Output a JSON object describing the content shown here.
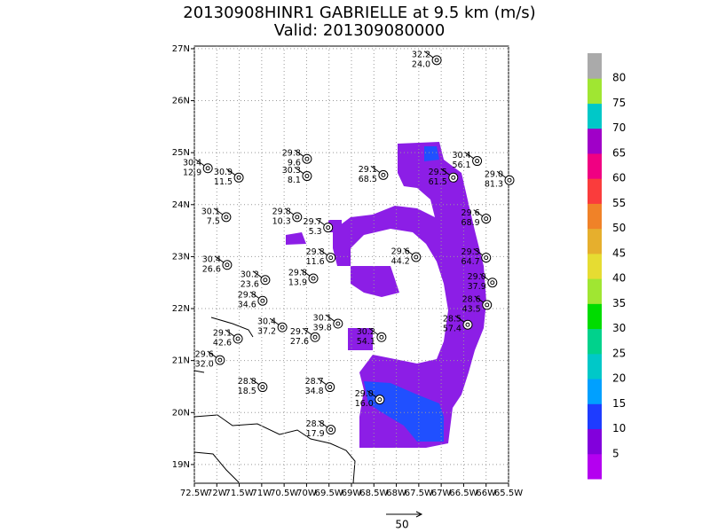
{
  "title": "20130908HINR1 GABRIELLE at 9.5 km (m/s)",
  "subtitle": "Valid: 201309080000",
  "map": {
    "xlim": [
      -72.5,
      -65.5
    ],
    "ylim": [
      18.64,
      27.05
    ],
    "xticks": [
      {
        "value": -72.5,
        "label": "72.5W"
      },
      {
        "value": -72,
        "label": "72W"
      },
      {
        "value": -71.5,
        "label": "71.5W"
      },
      {
        "value": -71,
        "label": "71W"
      },
      {
        "value": -70.5,
        "label": "70.5W"
      },
      {
        "value": -70,
        "label": "70W"
      },
      {
        "value": -69.5,
        "label": "69.5W"
      },
      {
        "value": -69,
        "label": "69W"
      },
      {
        "value": -68.5,
        "label": "68.5W"
      },
      {
        "value": -68,
        "label": "68W"
      },
      {
        "value": -67.5,
        "label": "67.5W"
      },
      {
        "value": -67,
        "label": "67W"
      },
      {
        "value": -66.5,
        "label": "66.5W"
      },
      {
        "value": -66,
        "label": "66W"
      },
      {
        "value": -65.5,
        "label": "65.5W"
      }
    ],
    "yticks": [
      {
        "value": 19,
        "label": "19N"
      },
      {
        "value": 20,
        "label": "20N"
      },
      {
        "value": 21,
        "label": "21N"
      },
      {
        "value": 22,
        "label": "22N"
      },
      {
        "value": 23,
        "label": "23N"
      },
      {
        "value": 24,
        "label": "24N"
      },
      {
        "value": 25,
        "label": "25N"
      },
      {
        "value": 26,
        "label": "26N"
      },
      {
        "value": 27,
        "label": "27N"
      }
    ],
    "grid": true
  },
  "stations": [
    {
      "lon": -67.1,
      "lat": 26.78,
      "top": "32.2",
      "bottom": "24.0"
    },
    {
      "lon": -69.99,
      "lat": 24.88,
      "top": "29.8",
      "bottom": "9.6"
    },
    {
      "lon": -72.2,
      "lat": 24.7,
      "top": "30.4",
      "bottom": "12.9"
    },
    {
      "lon": -71.51,
      "lat": 24.52,
      "top": "30.9",
      "bottom": "11.5"
    },
    {
      "lon": -69.99,
      "lat": 24.55,
      "top": "30.3",
      "bottom": "8.1"
    },
    {
      "lon": -68.29,
      "lat": 24.57,
      "top": "29.1",
      "bottom": "68.5"
    },
    {
      "lon": -66.73,
      "lat": 24.52,
      "top": "29.5",
      "bottom": "61.5"
    },
    {
      "lon": -66.2,
      "lat": 24.84,
      "top": "30.4",
      "bottom": "56.1"
    },
    {
      "lon": -65.48,
      "lat": 24.47,
      "top": "29.0",
      "bottom": "81.3"
    },
    {
      "lon": -71.79,
      "lat": 23.76,
      "top": "30.1",
      "bottom": "7.5"
    },
    {
      "lon": -70.21,
      "lat": 23.76,
      "top": "29.8",
      "bottom": "10.3"
    },
    {
      "lon": -69.52,
      "lat": 23.56,
      "top": "29.7",
      "bottom": "5.3"
    },
    {
      "lon": -67.56,
      "lat": 22.99,
      "top": "29.6",
      "bottom": "44.2"
    },
    {
      "lon": -66.0,
      "lat": 23.73,
      "top": "29.6",
      "bottom": "68.9"
    },
    {
      "lon": -66.0,
      "lat": 22.98,
      "top": "29.3",
      "bottom": "64.7"
    },
    {
      "lon": -71.77,
      "lat": 22.84,
      "top": "30.4",
      "bottom": "26.6"
    },
    {
      "lon": -70.92,
      "lat": 22.55,
      "top": "30.2",
      "bottom": "23.6"
    },
    {
      "lon": -69.85,
      "lat": 22.58,
      "top": "29.8",
      "bottom": "13.9"
    },
    {
      "lon": -70.98,
      "lat": 22.15,
      "top": "29.8",
      "bottom": "34.6"
    },
    {
      "lon": -69.46,
      "lat": 22.98,
      "top": "29.8",
      "bottom": "11.6"
    },
    {
      "lon": -70.54,
      "lat": 21.64,
      "top": "30.4",
      "bottom": "37.2"
    },
    {
      "lon": -71.53,
      "lat": 21.42,
      "top": "29.1",
      "bottom": "42.6"
    },
    {
      "lon": -69.81,
      "lat": 21.45,
      "top": "29.7",
      "bottom": "27.6"
    },
    {
      "lon": -69.3,
      "lat": 21.71,
      "top": "30.1",
      "bottom": "39.8"
    },
    {
      "lon": -68.33,
      "lat": 21.45,
      "top": "30.2",
      "bottom": "54.1"
    },
    {
      "lon": -71.93,
      "lat": 21.01,
      "top": "29.6",
      "bottom": "32.0"
    },
    {
      "lon": -70.98,
      "lat": 20.49,
      "top": "28.8",
      "bottom": "18.5"
    },
    {
      "lon": -69.48,
      "lat": 20.49,
      "top": "28.7",
      "bottom": "34.8"
    },
    {
      "lon": -68.37,
      "lat": 20.25,
      "top": "29.0",
      "bottom": "16.0"
    },
    {
      "lon": -69.46,
      "lat": 19.67,
      "top": "28.8",
      "bottom": "17.9"
    },
    {
      "lon": -66.41,
      "lat": 21.69,
      "top": "28.5",
      "bottom": "57.4"
    },
    {
      "lon": -65.86,
      "lat": 22.5,
      "top": "29.0",
      "bottom": "37.9"
    },
    {
      "lon": -65.98,
      "lat": 22.07,
      "top": "28.6",
      "bottom": "43.5"
    }
  ],
  "colorbar": {
    "levels": [
      5,
      10,
      15,
      20,
      25,
      30,
      35,
      40,
      45,
      50,
      55,
      60,
      65,
      70,
      75,
      80
    ],
    "colors": [
      "#b400f0",
      "#8200dc",
      "#1e3cff",
      "#00a0ff",
      "#00c8c8",
      "#00d28c",
      "#00dc00",
      "#a0e632",
      "#e6dc32",
      "#e6af2d",
      "#f08228",
      "#fa3c3c",
      "#f00082",
      "#a000c8",
      "#00c8c8",
      "#a0e632",
      "#aaaaaa"
    ]
  },
  "reference_vector": 50
}
